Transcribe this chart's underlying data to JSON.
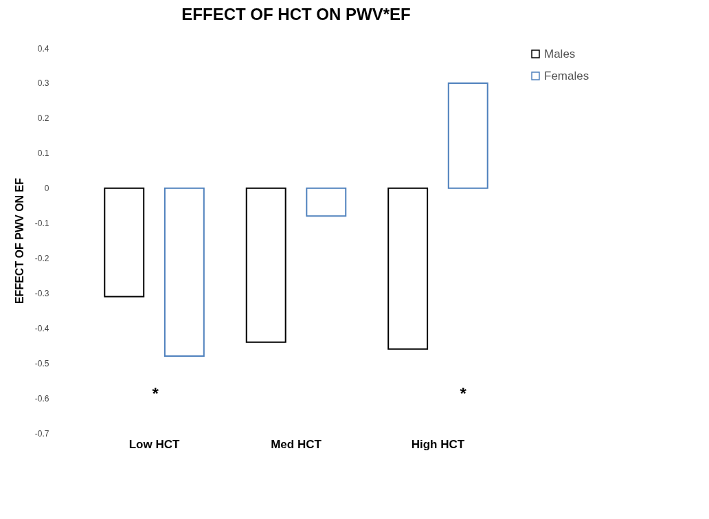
{
  "chart_data": {
    "type": "bar",
    "title": "EFFECT OF HCT ON PWV*EF",
    "ylabel": "EFFECT OF PWV ON EF",
    "categories": [
      "Low HCT",
      "Med HCT",
      "High HCT"
    ],
    "series": [
      {
        "name": "Males",
        "color": "#000000",
        "values": [
          -0.31,
          -0.44,
          -0.46
        ]
      },
      {
        "name": "Females",
        "color": "#4f81bd",
        "values": [
          -0.48,
          -0.08,
          0.3
        ]
      }
    ],
    "ylim": [
      -0.7,
      0.4
    ],
    "yticks": [
      -0.7,
      -0.6,
      -0.5,
      -0.4,
      -0.3,
      -0.2,
      -0.1,
      0,
      0.1,
      0.2,
      0.3,
      0.4
    ],
    "grid": false,
    "legend": "right",
    "annotations": [
      "*",
      "*"
    ]
  }
}
